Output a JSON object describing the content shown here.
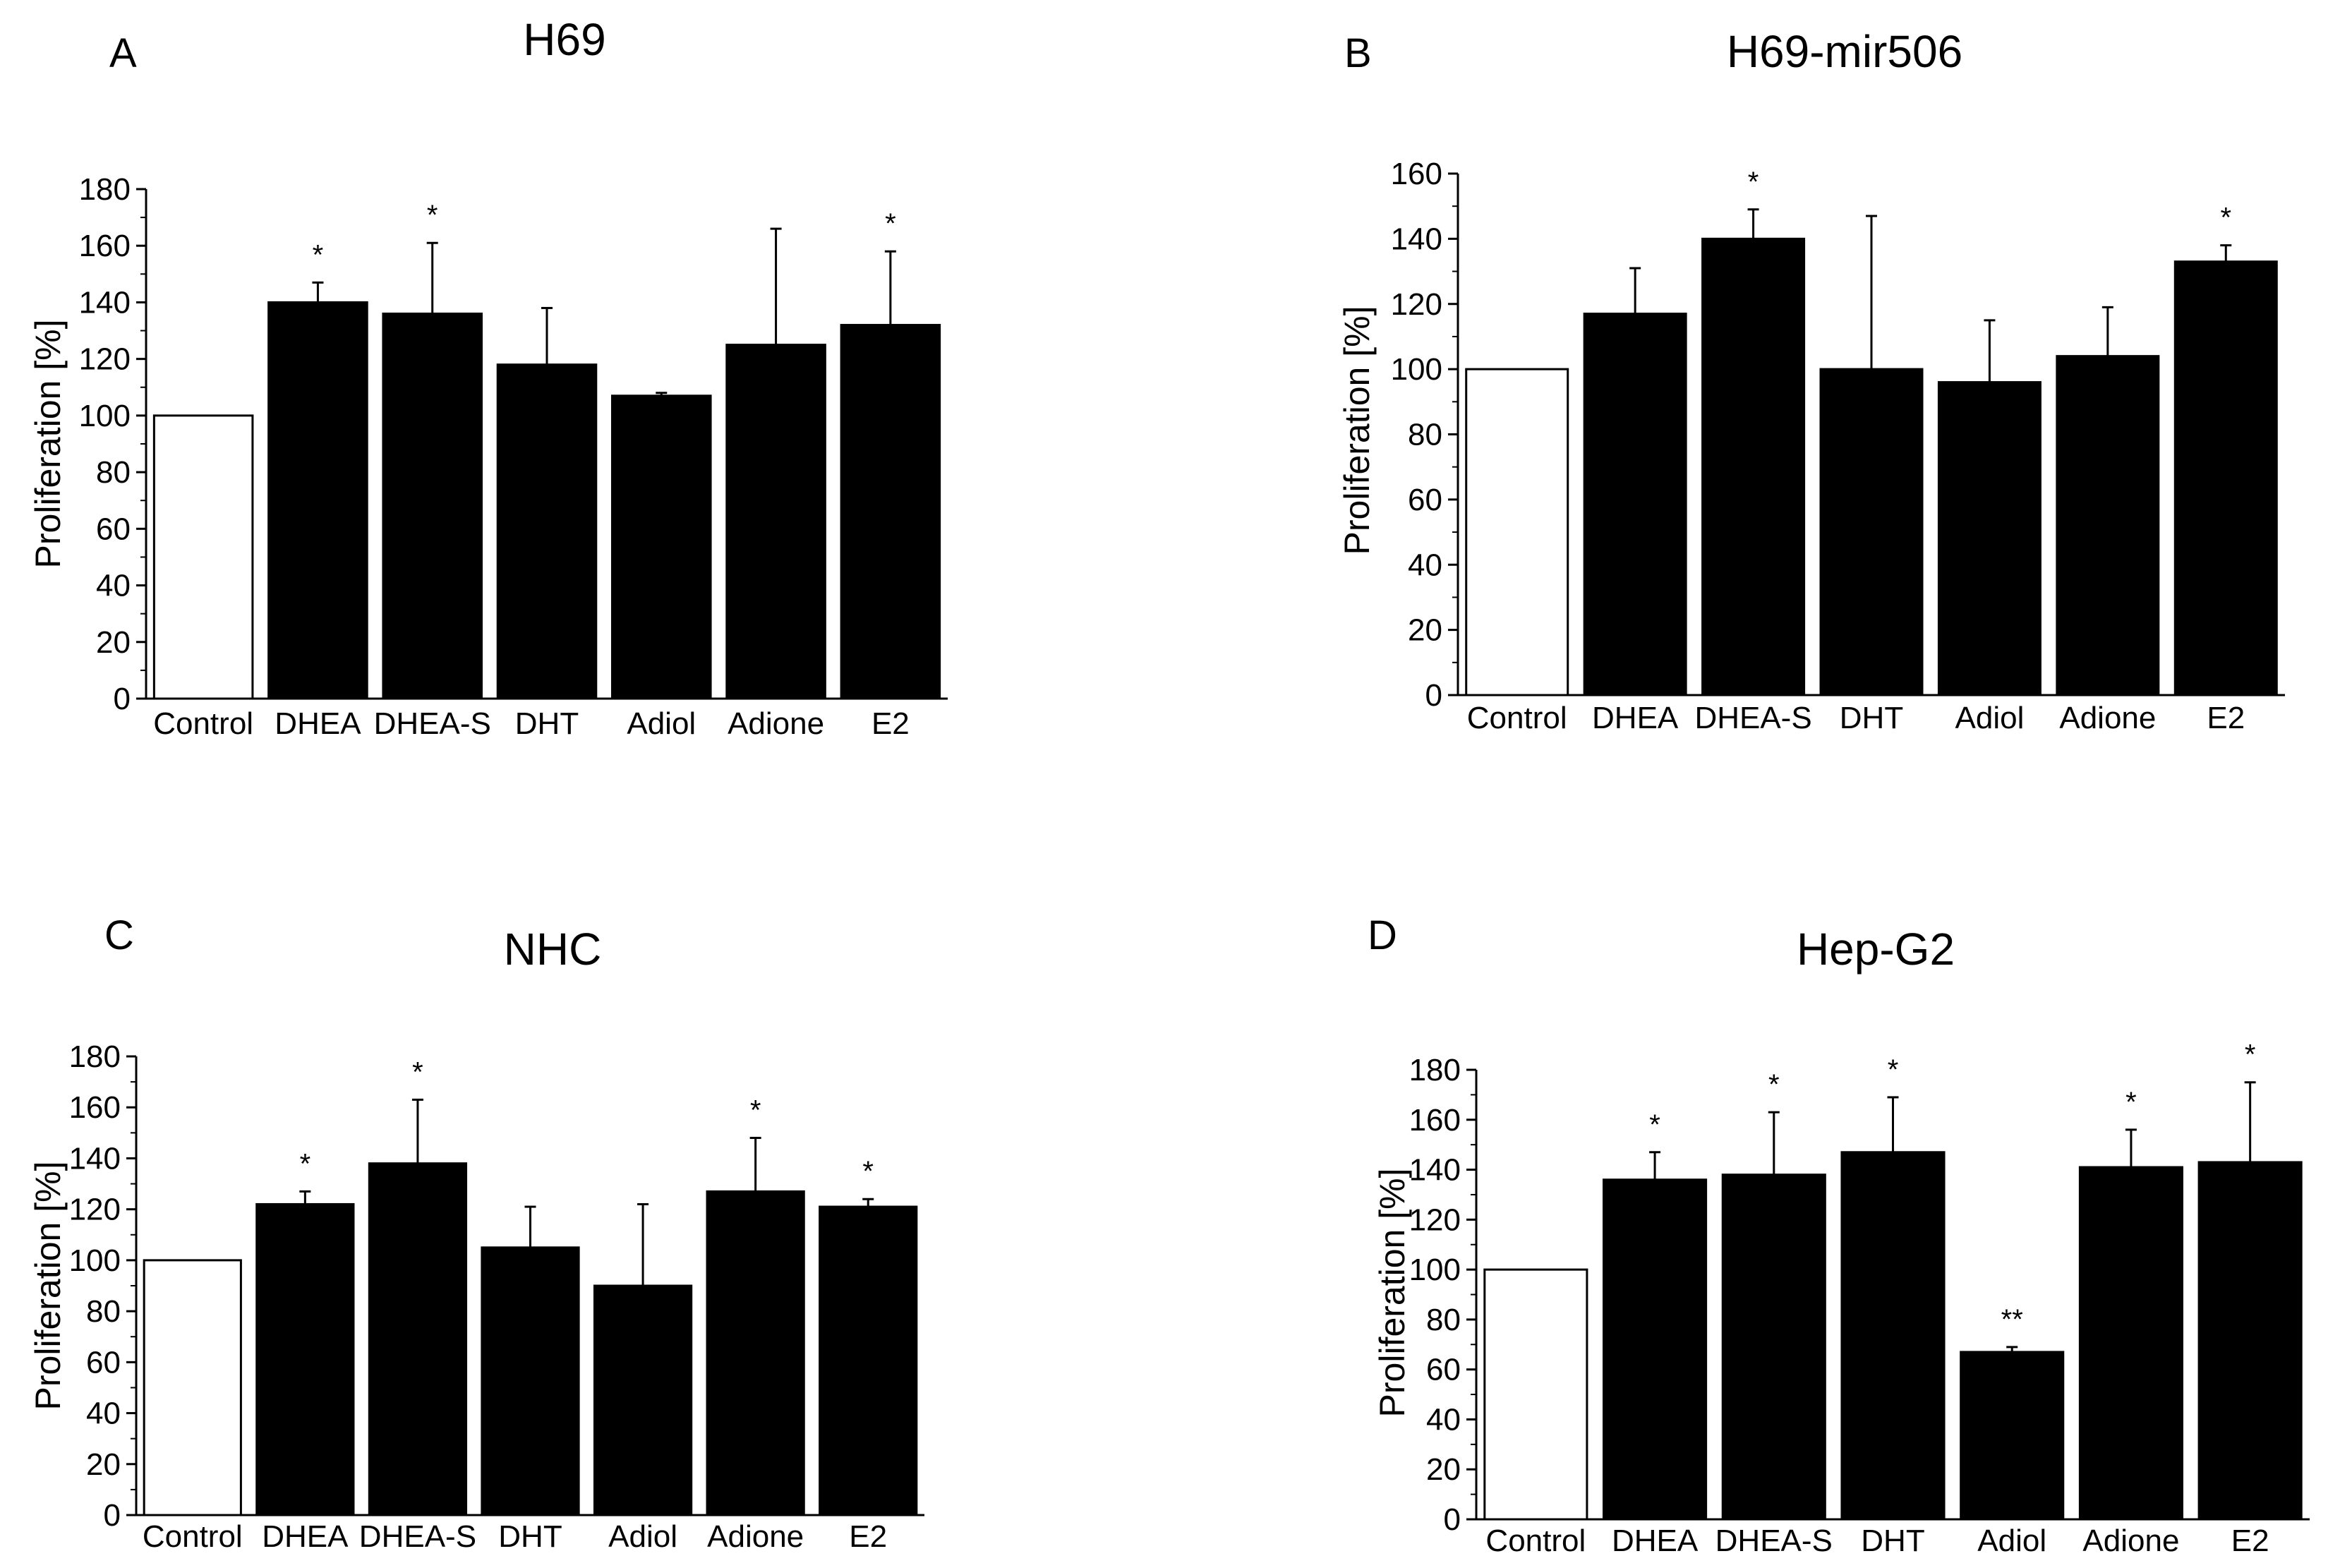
{
  "chart_data": [
    {
      "panel": "A",
      "type": "bar",
      "title": "H69",
      "xlabel": "",
      "ylabel": "Proliferation [%]",
      "ylim": [
        0,
        180
      ],
      "yticks": [
        0,
        20,
        40,
        60,
        80,
        100,
        120,
        140,
        160,
        180
      ],
      "categories": [
        "Control",
        "DHEA",
        "DHEA-S",
        "DHT",
        "Adiol",
        "Adione",
        "E2"
      ],
      "values": [
        100,
        140,
        136,
        118,
        107,
        125,
        132
      ],
      "errors": [
        0,
        7,
        25,
        20,
        1,
        41,
        26
      ],
      "significance": [
        "",
        "*",
        "*",
        "",
        "",
        "",
        "*"
      ],
      "bar_colors": [
        "#ffffff",
        "#000000",
        "#000000",
        "#000000",
        "#000000",
        "#000000",
        "#000000"
      ]
    },
    {
      "panel": "B",
      "type": "bar",
      "title": "H69-mir506",
      "xlabel": "",
      "ylabel": "Proliferation [%]",
      "ylim": [
        0,
        160
      ],
      "yticks": [
        0,
        20,
        40,
        60,
        80,
        100,
        120,
        140,
        160
      ],
      "categories": [
        "Control",
        "DHEA",
        "DHEA-S",
        "DHT",
        "Adiol",
        "Adione",
        "E2"
      ],
      "values": [
        100,
        117,
        140,
        100,
        96,
        104,
        133
      ],
      "errors": [
        0,
        14,
        9,
        47,
        19,
        15,
        5
      ],
      "significance": [
        "",
        "",
        "*",
        "",
        "",
        "",
        "*"
      ],
      "bar_colors": [
        "#ffffff",
        "#000000",
        "#000000",
        "#000000",
        "#000000",
        "#000000",
        "#000000"
      ]
    },
    {
      "panel": "C",
      "type": "bar",
      "title": "NHC",
      "xlabel": "",
      "ylabel": "Proliferation [%]",
      "ylim": [
        0,
        180
      ],
      "yticks": [
        0,
        20,
        40,
        60,
        80,
        100,
        120,
        140,
        160,
        180
      ],
      "categories": [
        "Control",
        "DHEA",
        "DHEA-S",
        "DHT",
        "Adiol",
        "Adione",
        "E2"
      ],
      "values": [
        100,
        122,
        138,
        105,
        90,
        127,
        121
      ],
      "errors": [
        0,
        5,
        25,
        16,
        32,
        21,
        3
      ],
      "significance": [
        "",
        "*",
        "*",
        "",
        "",
        "*",
        "*"
      ],
      "bar_colors": [
        "#ffffff",
        "#000000",
        "#000000",
        "#000000",
        "#000000",
        "#000000",
        "#000000"
      ]
    },
    {
      "panel": "D",
      "type": "bar",
      "title": "Hep-G2",
      "xlabel": "",
      "ylabel": "Proliferation [%]",
      "ylim": [
        0,
        180
      ],
      "yticks": [
        0,
        20,
        40,
        60,
        80,
        100,
        120,
        140,
        160,
        180
      ],
      "categories": [
        "Control",
        "DHEA",
        "DHEA-S",
        "DHT",
        "Adiol",
        "Adione",
        "E2"
      ],
      "values": [
        100,
        136,
        138,
        147,
        67,
        141,
        143
      ],
      "errors": [
        0,
        11,
        25,
        22,
        2,
        15,
        32
      ],
      "significance": [
        "",
        "*",
        "*",
        "*",
        "**",
        "*",
        "*"
      ],
      "bar_colors": [
        "#ffffff",
        "#000000",
        "#000000",
        "#000000",
        "#000000",
        "#000000",
        "#000000"
      ]
    }
  ]
}
